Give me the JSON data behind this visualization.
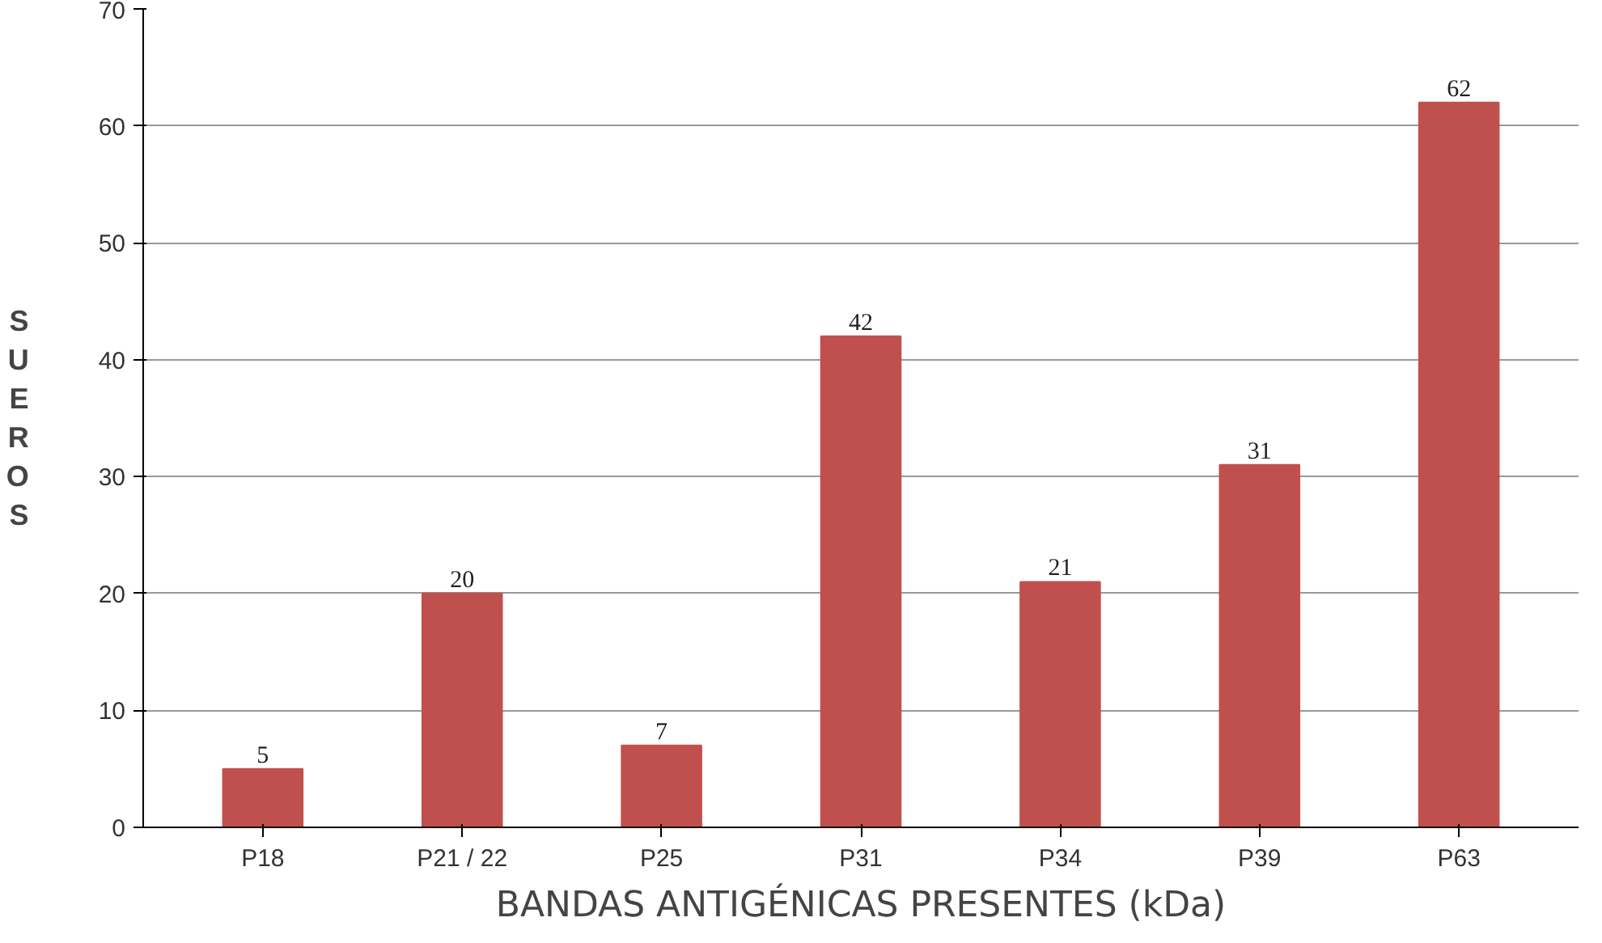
{
  "chart_data": {
    "type": "bar",
    "xlabel": "BANDAS ANTIGÉNICAS PRESENTES (kDa)",
    "ylabel": "SUEROS",
    "categories": [
      "P18",
      "P21 / 22",
      "P25",
      "P31",
      "P34",
      "P39",
      "P63"
    ],
    "values": [
      5,
      20,
      7,
      42,
      21,
      31,
      62
    ],
    "color": "#c0504d",
    "ylim": [
      0,
      70
    ],
    "yticks": [
      0,
      10,
      20,
      30,
      40,
      50,
      60,
      70
    ],
    "grid": "y",
    "data_labels": true
  }
}
